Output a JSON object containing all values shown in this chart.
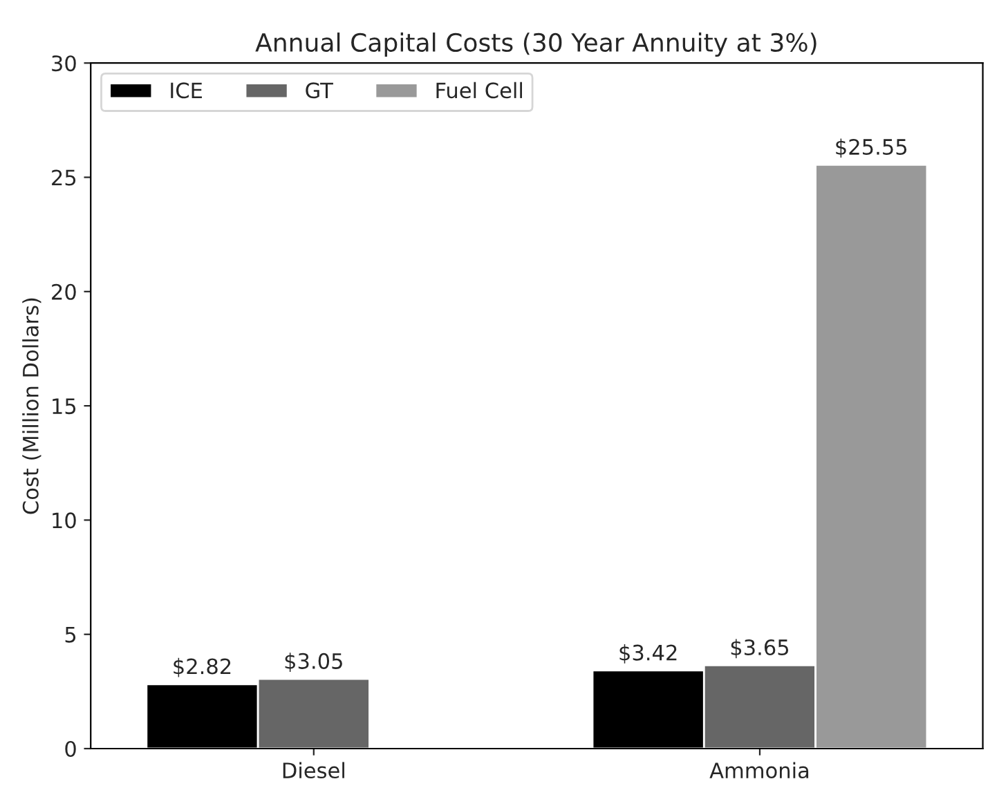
{
  "chart_data": {
    "type": "bar",
    "title": "Annual Capital Costs (30 Year Annuity at 3%)",
    "ylabel": "Cost (Million Dollars)",
    "categories": [
      "Diesel",
      "Ammonia"
    ],
    "series": [
      {
        "name": "ICE",
        "color": "#000000",
        "values": [
          2.82,
          3.42
        ],
        "value_labels": [
          "$2.82",
          "$3.42"
        ]
      },
      {
        "name": "GT",
        "color": "#666666",
        "values": [
          3.05,
          3.65
        ],
        "value_labels": [
          "$3.05",
          "$3.65"
        ]
      },
      {
        "name": "Fuel Cell",
        "color": "#999999",
        "values": [
          null,
          25.55
        ],
        "value_labels": [
          null,
          "$25.55"
        ]
      }
    ],
    "ylim": [
      0,
      30
    ],
    "yticks": [
      0,
      5,
      10,
      15,
      20,
      25,
      30
    ],
    "grid": false,
    "legend": "top left"
  }
}
